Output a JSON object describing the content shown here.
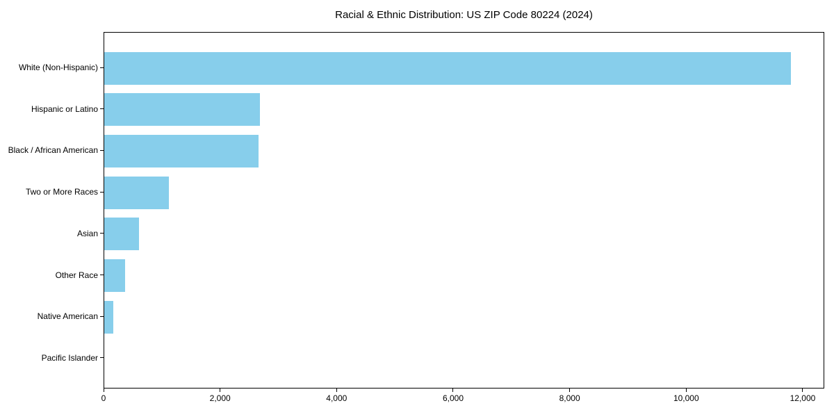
{
  "figure": {
    "background_color": "#ffffff",
    "axis_color": "#000000",
    "text_color": "#000000"
  },
  "chart_data": {
    "type": "bar",
    "orientation": "horizontal",
    "title": "Racial & Ethnic Distribution: US ZIP Code 80224 (2024)",
    "categories": [
      "White (Non-Hispanic)",
      "Hispanic or Latino",
      "Black / African American",
      "Two or More Races",
      "Asian",
      "Other Race",
      "Native American",
      "Pacific Islander"
    ],
    "values": [
      11780,
      2670,
      2645,
      1110,
      600,
      360,
      155,
      0
    ],
    "xlabel": "",
    "ylabel": "",
    "xlim": [
      0,
      12370
    ],
    "x_ticks": [
      0,
      2000,
      4000,
      6000,
      8000,
      10000,
      12000
    ],
    "x_tick_labels": [
      "0",
      "2,000",
      "4,000",
      "6,000",
      "8,000",
      "10,000",
      "12,000"
    ],
    "grid": false,
    "legend": "none",
    "bar_color": "#87CEEB"
  }
}
